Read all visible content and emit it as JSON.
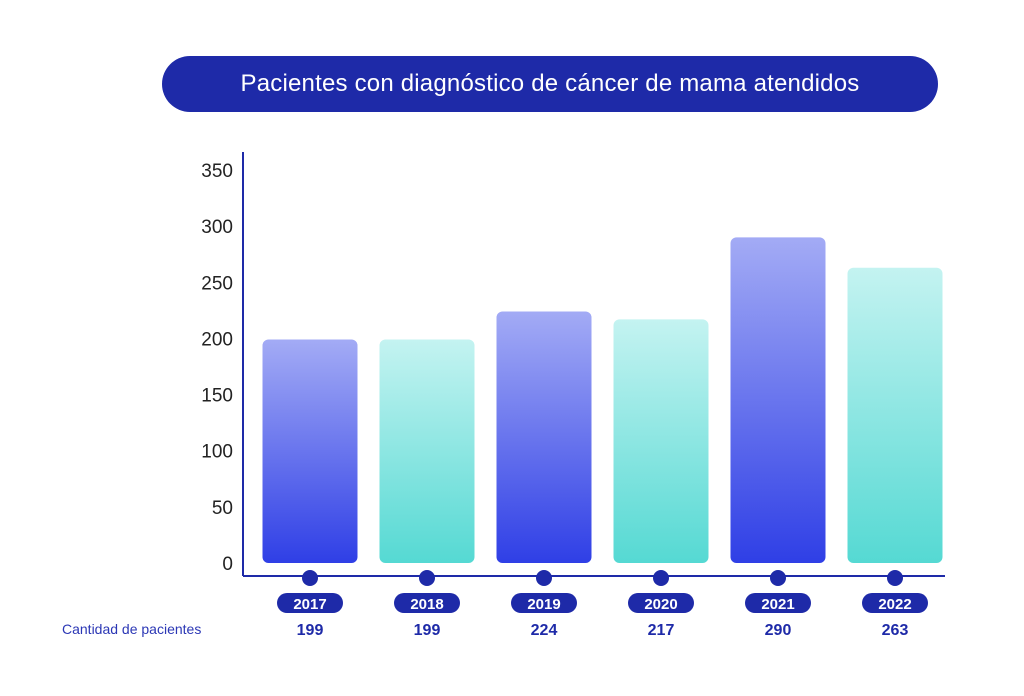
{
  "title": "Pacientes con diagnóstico de cáncer de mama atendidos",
  "row_label": "Cantidad de pacientes",
  "colors": {
    "title_bg": "#1e2aa8",
    "axis": "#1e2aa8",
    "pill": "#1e2aa8",
    "value_text": "#1e2aa8",
    "blue_top": "#a3abf5",
    "blue_bottom": "#2f3fe6",
    "teal_top": "#c4f3f1",
    "teal_bottom": "#55d9d3"
  },
  "chart_data": {
    "type": "bar",
    "title": "Pacientes con diagnóstico de cáncer de mama atendidos",
    "categories": [
      "2017",
      "2018",
      "2019",
      "2020",
      "2021",
      "2022"
    ],
    "values": [
      199,
      199,
      224,
      217,
      290,
      263
    ],
    "value_labels": [
      "199",
      "199",
      "224",
      "217",
      "290",
      "263"
    ],
    "bar_styles": [
      "blue",
      "teal",
      "blue",
      "teal",
      "blue",
      "teal"
    ],
    "ylim": [
      0,
      350
    ],
    "yticks": [
      0,
      50,
      100,
      150,
      200,
      250,
      300,
      350
    ],
    "grid": false,
    "legend": "none"
  }
}
